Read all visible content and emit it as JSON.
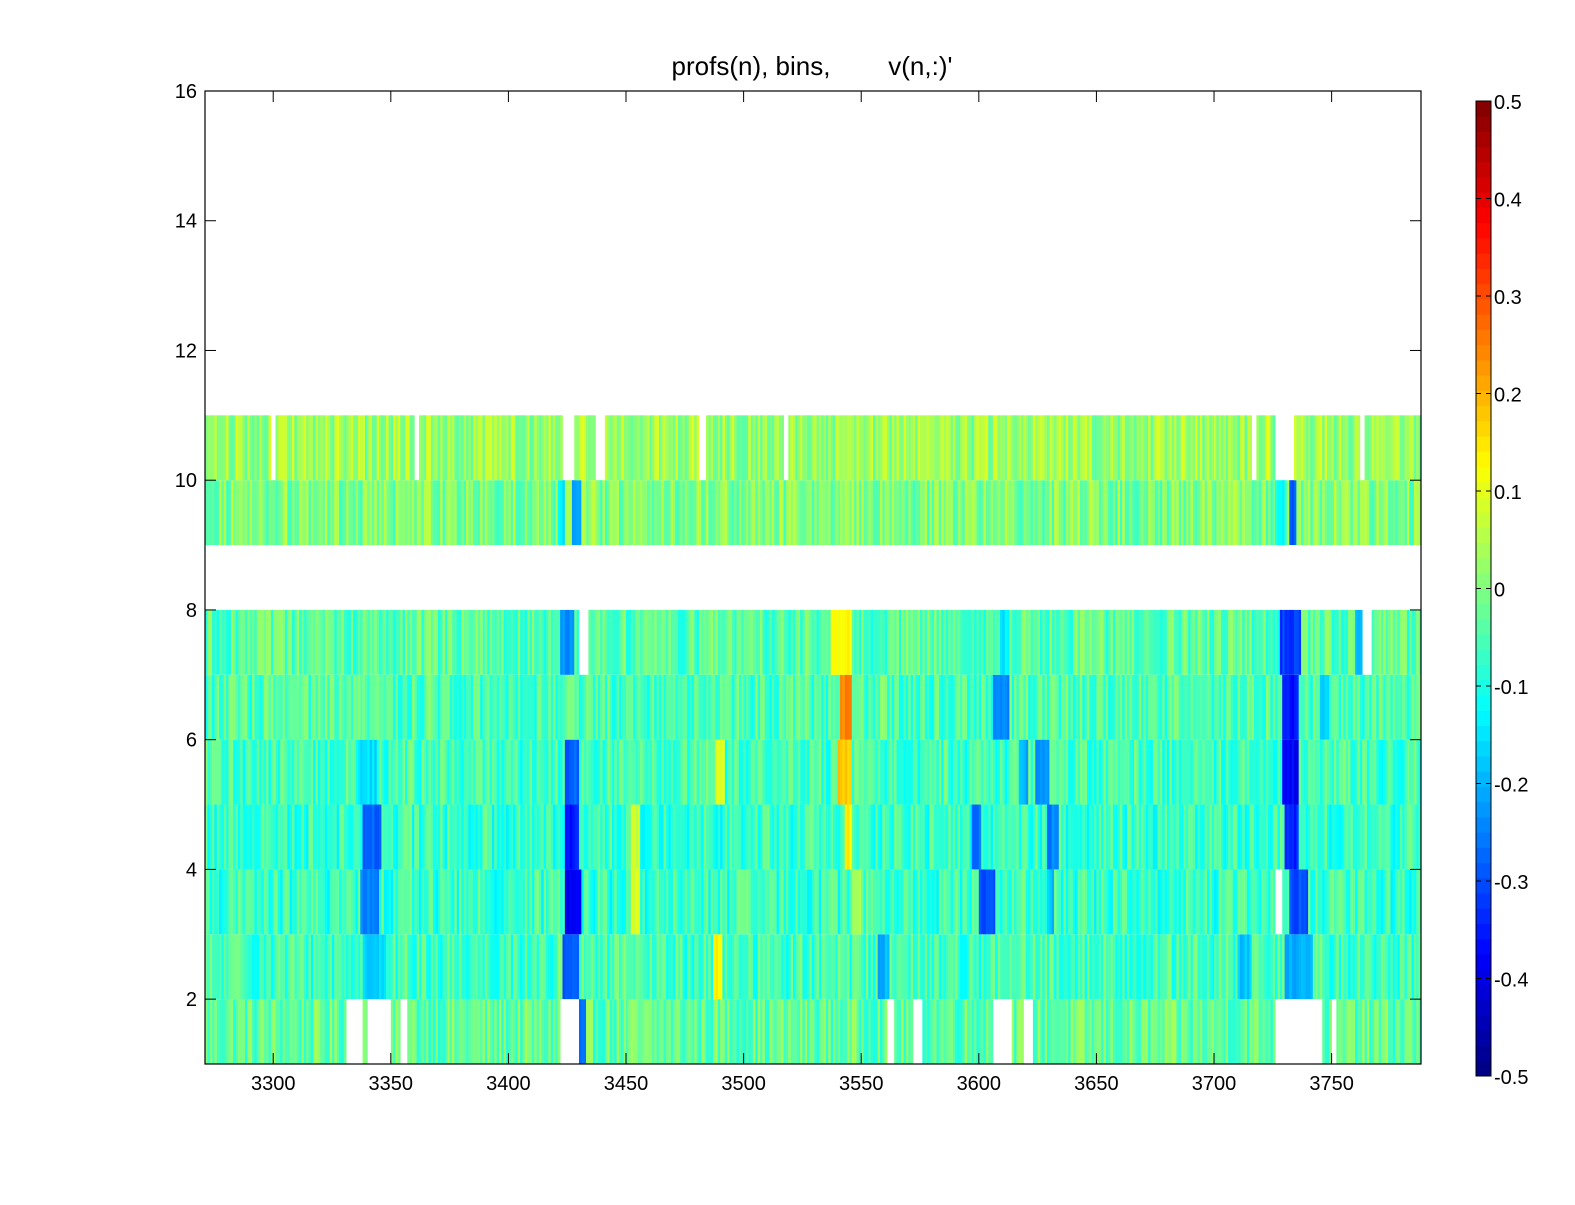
{
  "chart_data": {
    "type": "heatmap",
    "title": "profs(n), bins,        v(n,:)'",
    "xlabel": "",
    "ylabel": "",
    "xlim": [
      3271,
      3788
    ],
    "ylim": [
      1,
      16
    ],
    "xticks": [
      3300,
      3350,
      3400,
      3450,
      3500,
      3550,
      3600,
      3650,
      3700,
      3750
    ],
    "yticks": [
      2,
      4,
      6,
      8,
      10,
      12,
      14,
      16
    ],
    "colormap": "jet",
    "clim": [
      -0.5,
      0.5
    ],
    "colorbar": {
      "placement": "right",
      "ticks": [
        -0.5,
        -0.4,
        -0.3,
        -0.2,
        -0.1,
        0,
        0.1,
        0.2,
        0.3,
        0.4,
        0.5
      ],
      "tick_labels": [
        "-0.5",
        "-0.4",
        "-0.3",
        "-0.2",
        "-0.1",
        "0",
        "0.1",
        "0.2",
        "0.3",
        "0.4",
        "0.5"
      ]
    },
    "grid": false,
    "profile_step": 1,
    "rows": [
      {
        "bin": 1,
        "base": -0.03,
        "features": [
          [
            3331,
            3338,
            "nan"
          ],
          [
            3340,
            3350,
            "nan"
          ],
          [
            3354,
            3357,
            "nan"
          ],
          [
            3422,
            3430,
            "nan"
          ],
          [
            3428,
            3433,
            -0.28
          ],
          [
            3561,
            3564,
            "nan"
          ],
          [
            3572,
            3576,
            "nan"
          ],
          [
            3606,
            3614,
            "nan"
          ],
          [
            3619,
            3623,
            "nan"
          ],
          [
            3726,
            3746,
            "nan"
          ],
          [
            3750,
            3752,
            "nan"
          ]
        ]
      },
      {
        "bin": 2,
        "base": -0.06,
        "features": [
          [
            3338,
            3348,
            -0.17
          ],
          [
            3423,
            3430,
            -0.3
          ],
          [
            3487,
            3491,
            0.13
          ],
          [
            3557,
            3562,
            -0.2
          ],
          [
            3710,
            3716,
            -0.18
          ],
          [
            3730,
            3742,
            -0.2
          ]
        ]
      },
      {
        "bin": 3,
        "base": -0.07,
        "features": [
          [
            3337,
            3345,
            -0.24
          ],
          [
            3424,
            3431,
            -0.38
          ],
          [
            3452,
            3456,
            0.08
          ],
          [
            3546,
            3550,
            0.05
          ],
          [
            3600,
            3607,
            -0.3
          ],
          [
            3629,
            3632,
            -0.18
          ],
          [
            3726,
            3729,
            "nan"
          ],
          [
            3732,
            3740,
            -0.3
          ]
        ]
      },
      {
        "bin": 4,
        "base": -0.07,
        "features": [
          [
            3338,
            3346,
            -0.28
          ],
          [
            3424,
            3430,
            -0.35
          ],
          [
            3452,
            3456,
            0.08
          ],
          [
            3543,
            3546,
            0.14
          ],
          [
            3597,
            3601,
            -0.26
          ],
          [
            3629,
            3634,
            -0.25
          ],
          [
            3730,
            3736,
            -0.34
          ]
        ]
      },
      {
        "bin": 5,
        "base": -0.06,
        "features": [
          [
            3336,
            3344,
            -0.16
          ],
          [
            3424,
            3430,
            -0.28
          ],
          [
            3488,
            3492,
            0.1
          ],
          [
            3540,
            3546,
            0.17
          ],
          [
            3617,
            3621,
            -0.2
          ],
          [
            3624,
            3630,
            -0.24
          ],
          [
            3729,
            3736,
            -0.38
          ]
        ]
      },
      {
        "bin": 6,
        "base": -0.05,
        "features": [
          [
            3541,
            3546,
            0.25
          ],
          [
            3606,
            3613,
            -0.24
          ],
          [
            3729,
            3736,
            -0.36
          ],
          [
            3745,
            3749,
            -0.18
          ]
        ]
      },
      {
        "bin": 7,
        "base": -0.04,
        "features": [
          [
            3422,
            3428,
            -0.24
          ],
          [
            3430,
            3434,
            "nan"
          ],
          [
            3537,
            3546,
            0.12
          ],
          [
            3609,
            3613,
            -0.15
          ],
          [
            3728,
            3737,
            -0.32
          ],
          [
            3760,
            3764,
            -0.2
          ],
          [
            3763,
            3767,
            "nan"
          ]
        ]
      },
      {
        "bin": 9,
        "base": 0.0,
        "features": [
          [
            3421,
            3424,
            -0.14
          ],
          [
            3427,
            3431,
            -0.22
          ],
          [
            3726,
            3730,
            -0.12
          ],
          [
            3732,
            3735,
            -0.28
          ]
        ]
      },
      {
        "bin": 10,
        "base": 0.03,
        "features": [
          [
            3299,
            3301,
            "nan"
          ],
          [
            3360,
            3362,
            "nan"
          ],
          [
            3423,
            3428,
            "nan"
          ],
          [
            3437,
            3441,
            "nan"
          ],
          [
            3481,
            3484,
            "nan"
          ],
          [
            3517,
            3519,
            "nan"
          ],
          [
            3716,
            3718,
            "nan"
          ],
          [
            3726,
            3734,
            "nan"
          ],
          [
            3762,
            3764,
            "nan"
          ]
        ]
      }
    ]
  }
}
